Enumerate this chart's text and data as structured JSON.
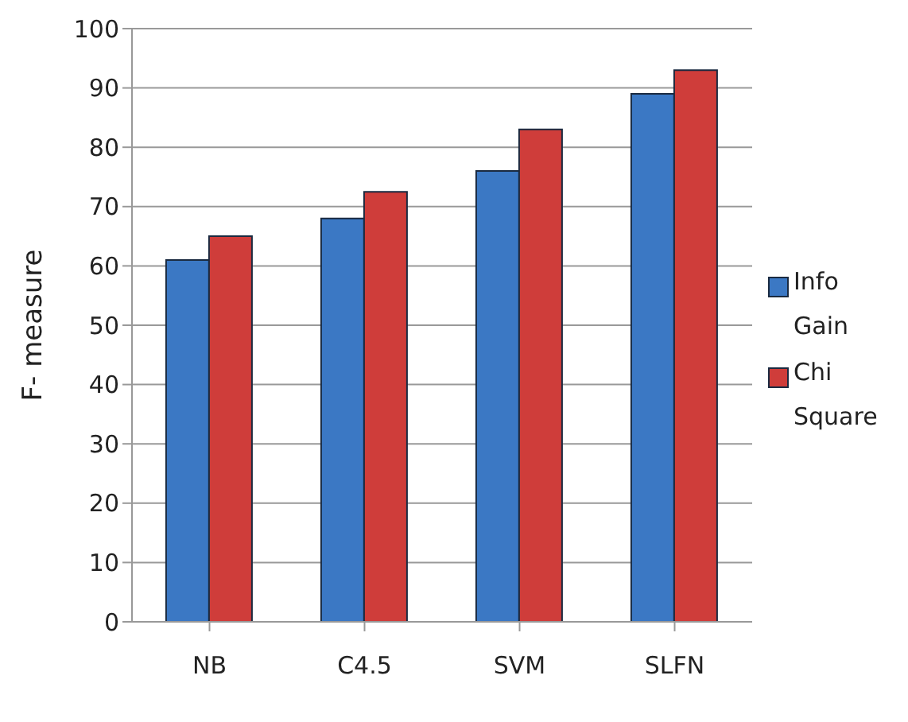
{
  "chart_data": {
    "type": "bar",
    "ylabel": "F- measure",
    "categories": [
      "NB",
      "C4.5",
      "SVM",
      "SLFN"
    ],
    "series": [
      {
        "name": "Info Gain",
        "color": "#3b78c4",
        "values": [
          61,
          68,
          76,
          89
        ]
      },
      {
        "name": "Chi Square",
        "color": "#cf3d3a",
        "values": [
          65,
          72.5,
          83,
          93
        ]
      }
    ],
    "ylim": [
      0,
      100
    ],
    "yticks": [
      0,
      10,
      20,
      30,
      40,
      50,
      60,
      70,
      80,
      90,
      100
    ],
    "grid": "y",
    "legend": "right"
  }
}
